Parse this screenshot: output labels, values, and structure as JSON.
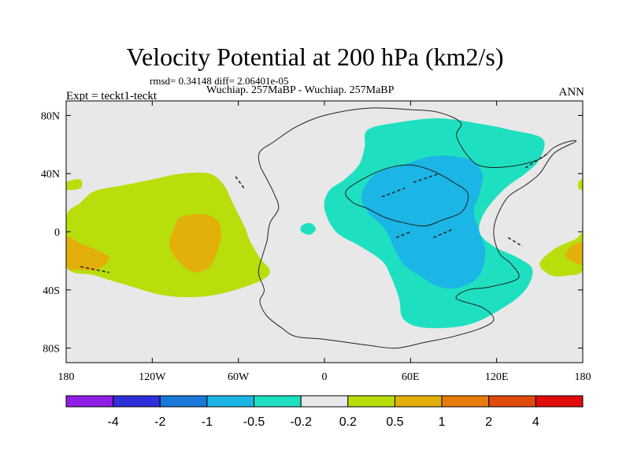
{
  "chart_data": {
    "type": "heatmap",
    "title": "Velocity Potential at 200 hPa (km2/s)",
    "subtitle": "rmsd= 0.34148 diff= 2.06401e-05",
    "center_string": "Wuchiap. 257MaBP - Wuchiap. 257MaBP",
    "left_string": "Expt = teckt1-teckt",
    "right_string": "ANN",
    "xlim": [
      -180,
      180
    ],
    "ylim": [
      -90,
      90
    ],
    "x_ticks": [
      {
        "value": -180,
        "label": "180"
      },
      {
        "value": -120,
        "label": "120W"
      },
      {
        "value": -60,
        "label": "60W"
      },
      {
        "value": 0,
        "label": "0"
      },
      {
        "value": 60,
        "label": "60E"
      },
      {
        "value": 120,
        "label": "120E"
      },
      {
        "value": 180,
        "label": "180"
      }
    ],
    "y_ticks": [
      {
        "value": 80,
        "label": "80N"
      },
      {
        "value": 40,
        "label": "40N"
      },
      {
        "value": 0,
        "label": "0"
      },
      {
        "value": -40,
        "label": "40S"
      },
      {
        "value": -80,
        "label": "80S"
      }
    ],
    "colorbar": {
      "colors": [
        "#8f1ee6",
        "#2f2fd9",
        "#1a78d9",
        "#1bb5e6",
        "#1ee0c0",
        "#e8e8e8",
        "#b8de0b",
        "#e3b00b",
        "#e67c0b",
        "#e04a0b",
        "#e00b0b"
      ],
      "labels": [
        "-4",
        "-2",
        "-1",
        "-0.5",
        "-0.2",
        "0.2",
        "0.5",
        "1",
        "2",
        "4"
      ]
    },
    "regions": [
      {
        "name": "region-positive-pacific-west",
        "level": "0.2 to 0.5",
        "color": "#b8de0b",
        "points": [
          [
            -180,
            10
          ],
          [
            -170,
            20
          ],
          [
            -160,
            28
          ],
          [
            -140,
            32
          ],
          [
            -120,
            36
          ],
          [
            -100,
            40
          ],
          [
            -80,
            40
          ],
          [
            -70,
            32
          ],
          [
            -65,
            22
          ],
          [
            -60,
            12
          ],
          [
            -55,
            2
          ],
          [
            -52,
            -6
          ],
          [
            -45,
            -18
          ],
          [
            -38,
            -28
          ],
          [
            -50,
            -36
          ],
          [
            -80,
            -44
          ],
          [
            -110,
            -44
          ],
          [
            -140,
            -36
          ],
          [
            -160,
            -30
          ],
          [
            -180,
            -24
          ]
        ]
      },
      {
        "name": "region-positive-east-edge",
        "level": "0.2 to 0.5",
        "color": "#b8de0b",
        "points": [
          [
            180,
            -2
          ],
          [
            175,
            -5
          ],
          [
            160,
            -12
          ],
          [
            150,
            -22
          ],
          [
            158,
            -30
          ],
          [
            170,
            -30
          ],
          [
            180,
            -26
          ]
        ]
      },
      {
        "name": "region-positive-west-edge-small",
        "level": "0.2 to 0.5",
        "color": "#b8de0b",
        "points": [
          [
            -180,
            34
          ],
          [
            -170,
            36
          ],
          [
            -170,
            30
          ],
          [
            -180,
            29
          ]
        ]
      },
      {
        "name": "region-positive-east-edge-small",
        "level": "0.2 to 0.5",
        "color": "#b8de0b",
        "points": [
          [
            180,
            36
          ],
          [
            177,
            34
          ],
          [
            177,
            30
          ],
          [
            180,
            29
          ]
        ]
      },
      {
        "name": "region-high-central-pacific",
        "level": "0.5 to 1",
        "color": "#e3b00b",
        "points": [
          [
            -100,
            10
          ],
          [
            -85,
            12
          ],
          [
            -75,
            8
          ],
          [
            -72,
            -2
          ],
          [
            -75,
            -14
          ],
          [
            -80,
            -24
          ],
          [
            -90,
            -28
          ],
          [
            -100,
            -22
          ],
          [
            -108,
            -10
          ],
          [
            -105,
            2
          ]
        ]
      },
      {
        "name": "region-high-west-edge",
        "level": "0.5 to 1",
        "color": "#e3b00b",
        "points": [
          [
            -180,
            -4
          ],
          [
            -170,
            -8
          ],
          [
            -160,
            -12
          ],
          [
            -150,
            -18
          ],
          [
            -158,
            -26
          ],
          [
            -170,
            -26
          ],
          [
            -180,
            -24
          ]
        ]
      },
      {
        "name": "region-high-east-edge",
        "level": "0.5 to 1",
        "color": "#e3b00b",
        "points": [
          [
            180,
            -8
          ],
          [
            172,
            -10
          ],
          [
            168,
            -16
          ],
          [
            172,
            -20
          ],
          [
            180,
            -22
          ]
        ]
      },
      {
        "name": "region-negative-indian-ocean",
        "level": "-0.5 to -0.2",
        "color": "#1ee0c0",
        "points": [
          [
            30,
            70
          ],
          [
            50,
            75
          ],
          [
            80,
            78
          ],
          [
            110,
            74
          ],
          [
            130,
            70
          ],
          [
            152,
            64
          ],
          [
            150,
            50
          ],
          [
            140,
            40
          ],
          [
            126,
            30
          ],
          [
            112,
            14
          ],
          [
            108,
            0
          ],
          [
            118,
            -10
          ],
          [
            135,
            -18
          ],
          [
            145,
            -26
          ],
          [
            140,
            -40
          ],
          [
            125,
            -52
          ],
          [
            100,
            -64
          ],
          [
            70,
            -66
          ],
          [
            55,
            -60
          ],
          [
            52,
            -46
          ],
          [
            46,
            -30
          ],
          [
            40,
            -20
          ],
          [
            25,
            -10
          ],
          [
            8,
            0
          ],
          [
            0,
            16
          ],
          [
            3,
            28
          ],
          [
            14,
            36
          ],
          [
            24,
            46
          ],
          [
            28,
            58
          ]
        ]
      },
      {
        "name": "region-negative-atlantic-blob",
        "level": "-0.5 to -0.2",
        "color": "#1ee0c0",
        "points": [
          [
            -16,
            4
          ],
          [
            -10,
            6
          ],
          [
            -6,
            2
          ],
          [
            -10,
            -2
          ],
          [
            -16,
            0
          ]
        ]
      },
      {
        "name": "region-strong-negative-core",
        "level": "-1 to -0.5",
        "color": "#1bb5e6",
        "points": [
          [
            55,
            46
          ],
          [
            75,
            52
          ],
          [
            100,
            50
          ],
          [
            110,
            40
          ],
          [
            108,
            26
          ],
          [
            104,
            14
          ],
          [
            108,
            0
          ],
          [
            112,
            -14
          ],
          [
            108,
            -30
          ],
          [
            95,
            -38
          ],
          [
            80,
            -38
          ],
          [
            66,
            -30
          ],
          [
            55,
            -22
          ],
          [
            48,
            -10
          ],
          [
            42,
            2
          ],
          [
            30,
            14
          ],
          [
            26,
            26
          ],
          [
            36,
            40
          ]
        ]
      }
    ]
  }
}
